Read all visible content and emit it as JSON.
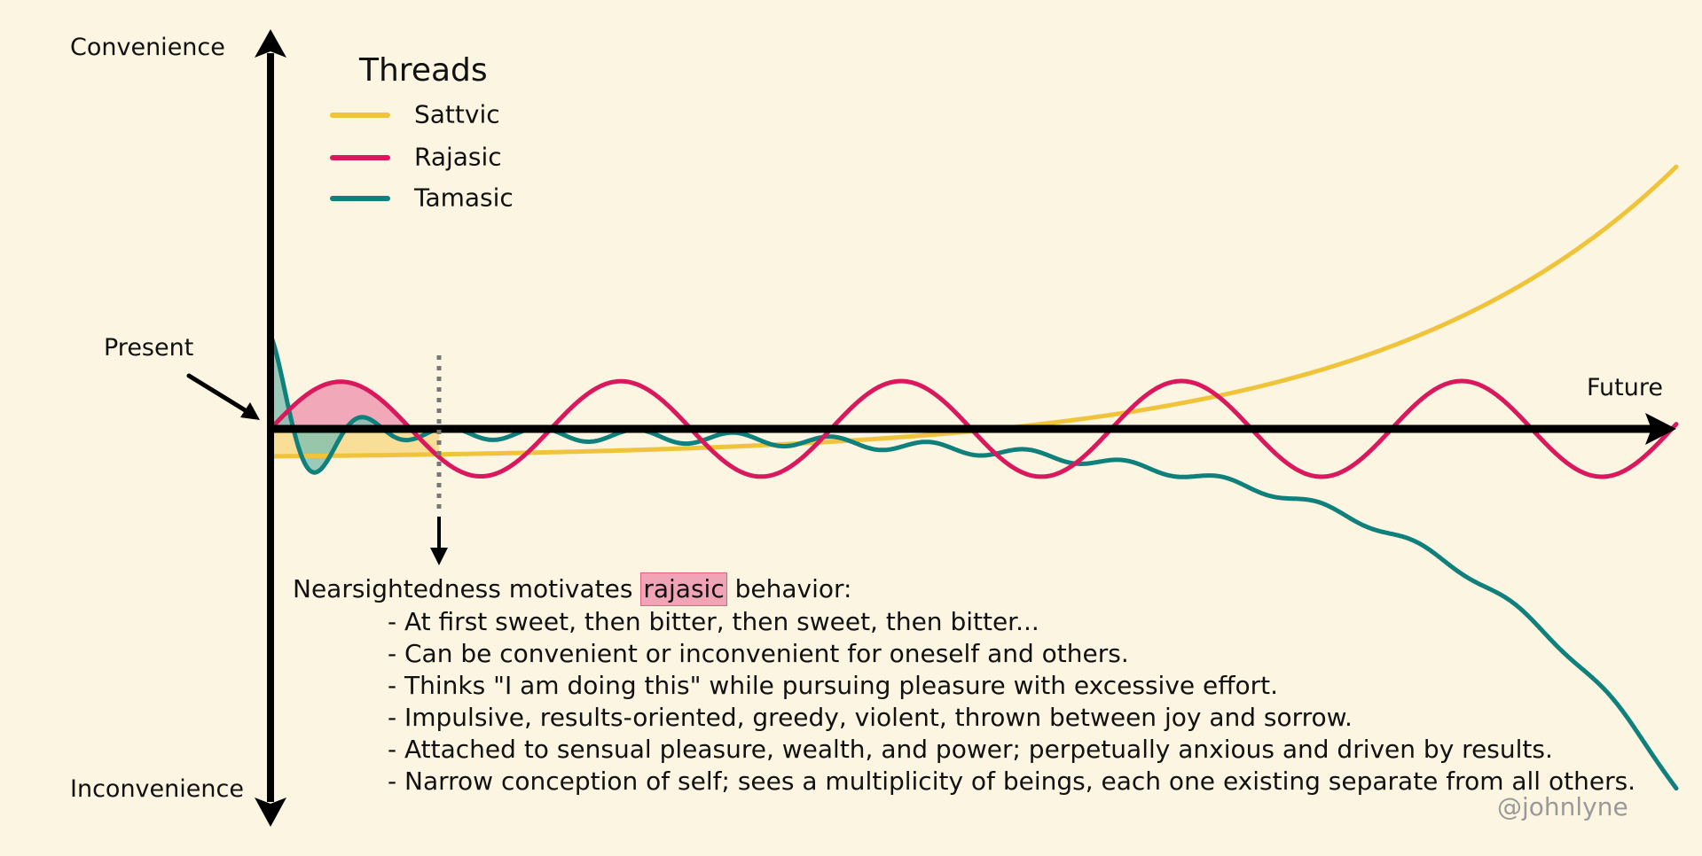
{
  "labels": {
    "convenience": "Convenience",
    "inconvenience": "Inconvenience",
    "present": "Present",
    "future": "Future"
  },
  "legend": {
    "title": "Threads",
    "items": [
      {
        "label": "Sattvic",
        "color": "#f0c43a"
      },
      {
        "label": "Rajasic",
        "color": "#d9185e"
      },
      {
        "label": "Tamasic",
        "color": "#10807d"
      }
    ]
  },
  "description": {
    "prefix": "Nearsightedness motivates",
    "highlight": "rajasic",
    "suffix": "behavior:",
    "bullets": [
      "- At first sweet, then bitter, then sweet, then bitter...",
      "- Can be convenient or inconvenient for oneself and others.",
      "- Thinks \"I am doing this\" while pursuing pleasure with excessive effort.",
      "- Impulsive, results-oriented, greedy, violent, thrown between joy and sorrow.",
      "- Attached to sensual pleasure, wealth, and power; perpetually anxious and driven by results.",
      "- Narrow conception of self; sees a multiplicity of beings, each one existing separate from all others."
    ]
  },
  "watermark": "@johnlyne",
  "colors": {
    "background": "#fcf5e1",
    "sattvic": "#f0c43a",
    "rajasic": "#d9185e",
    "tamasic": "#10807d",
    "highlight": "#f1a4b6"
  }
}
